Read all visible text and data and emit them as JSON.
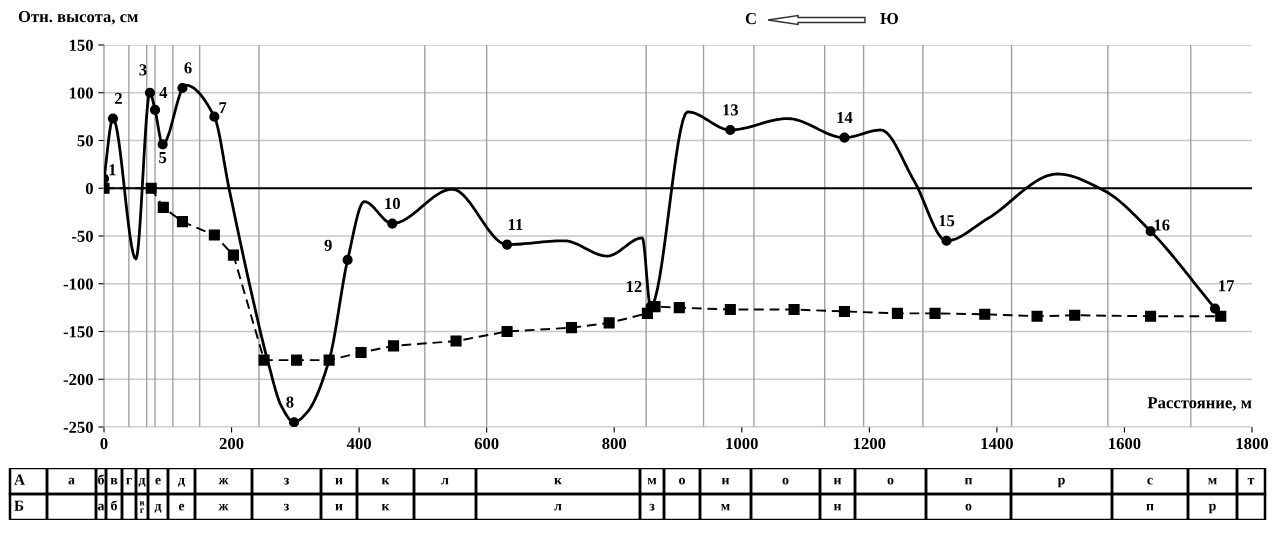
{
  "chart_data": [
    {
      "type": "line",
      "xlabel": "Расстояние, м",
      "ylabel": "Отн. высота, см",
      "xlim": [
        0,
        1800
      ],
      "ylim": [
        -250,
        150
      ],
      "xticks": [
        0,
        200,
        400,
        600,
        800,
        1000,
        1200,
        1400,
        1600,
        1800
      ],
      "yticks": [
        -250,
        -200,
        -150,
        -100,
        -50,
        0,
        50,
        100,
        150
      ],
      "grid": "y",
      "ref_lines": [
        {
          "axis": "y",
          "value": 0,
          "color": "#000000"
        },
        {
          "axis": "x",
          "value": 39,
          "color": "#a0a0a0"
        },
        {
          "axis": "x",
          "value": 67,
          "color": "#a0a0a0"
        },
        {
          "axis": "x",
          "value": 80,
          "color": "#a0a0a0"
        },
        {
          "axis": "x",
          "value": 108,
          "color": "#a0a0a0"
        },
        {
          "axis": "x",
          "value": 150,
          "color": "#a0a0a0"
        },
        {
          "axis": "x",
          "value": 243,
          "color": "#a0a0a0"
        },
        {
          "axis": "x",
          "value": 503,
          "color": "#a0a0a0"
        },
        {
          "axis": "x",
          "value": 600,
          "color": "#a0a0a0"
        },
        {
          "axis": "x",
          "value": 850,
          "color": "#a0a0a0"
        },
        {
          "axis": "x",
          "value": 940,
          "color": "#a0a0a0"
        },
        {
          "axis": "x",
          "value": 1019,
          "color": "#a0a0a0"
        },
        {
          "axis": "x",
          "value": 1130,
          "color": "#a0a0a0"
        },
        {
          "axis": "x",
          "value": 1191,
          "color": "#a0a0a0"
        },
        {
          "axis": "x",
          "value": 1284,
          "color": "#a0a0a0"
        },
        {
          "axis": "x",
          "value": 1423,
          "color": "#a0a0a0"
        },
        {
          "axis": "x",
          "value": 1574,
          "color": "#a0a0a0"
        },
        {
          "axis": "x",
          "value": 1704,
          "color": "#a0a0a0"
        }
      ],
      "series": [
        {
          "type": "line",
          "color": "#000000",
          "line_style": "solid",
          "marker": "none",
          "x": [
            0,
            14,
            50,
            72,
            80,
            92,
            128,
            173,
            196,
            228,
            258,
            278,
            298,
            318,
            353,
            382,
            408,
            452,
            546,
            632,
            721,
            789,
            844,
            857,
            915,
            982,
            1072,
            1161,
            1218,
            1270,
            1321,
            1385,
            1495,
            1567,
            1641,
            1742
          ],
          "values": [
            10,
            73,
            -74,
            100,
            82,
            46,
            108,
            75,
            0,
            -100,
            -184,
            -228,
            -245,
            -235,
            -180,
            -75,
            -14,
            -37,
            -1,
            -59,
            -55,
            -71,
            -52,
            -124,
            80,
            61,
            73,
            53,
            61,
            8,
            -55,
            -32,
            15,
            -2,
            -45,
            -126
          ]
        },
        {
          "type": "scatter",
          "color": "#000000",
          "marker": "circle",
          "x": [
            0,
            14,
            72,
            80,
            92,
            123,
            173,
            298,
            382,
            452,
            632,
            857,
            982,
            1161,
            1321,
            1641,
            1742
          ],
          "values": [
            10,
            73,
            100,
            82,
            46,
            105,
            75,
            -245,
            -75,
            -37,
            -59,
            -124,
            61,
            53,
            -55,
            -45,
            -126
          ]
        },
        {
          "type": "line",
          "color": "#000000",
          "line_style": "dashed",
          "marker": "square",
          "x": [
            0,
            74,
            93,
            123,
            173,
            203,
            251,
            302,
            353,
            403,
            454,
            552,
            632,
            733,
            792,
            852,
            864,
            902,
            982,
            1082,
            1161,
            1244,
            1303,
            1381,
            1463,
            1522,
            1641,
            1751
          ],
          "values": [
            0,
            0,
            -20,
            -35,
            -49,
            -70,
            -180,
            -180,
            -180,
            -172,
            -165,
            -160,
            -150,
            -146,
            -141,
            -131,
            -124,
            -125,
            -127,
            -127,
            -129,
            -131,
            -131,
            -132,
            -134,
            -133,
            -134,
            -134
          ]
        }
      ],
      "annotations": [
        {
          "text": "1",
          "x": 0,
          "y": 10
        },
        {
          "text": "2",
          "x": 14,
          "y": 73
        },
        {
          "text": "3",
          "x": 72,
          "y": 100
        },
        {
          "text": "4",
          "x": 80,
          "y": 82
        },
        {
          "text": "5",
          "x": 92,
          "y": 46
        },
        {
          "text": "6",
          "x": 123,
          "y": 105
        },
        {
          "text": "7",
          "x": 173,
          "y": 75
        },
        {
          "text": "8",
          "x": 298,
          "y": -245
        },
        {
          "text": "9",
          "x": 382,
          "y": -75
        },
        {
          "text": "10",
          "x": 452,
          "y": -37
        },
        {
          "text": "11",
          "x": 632,
          "y": -59
        },
        {
          "text": "12",
          "x": 857,
          "y": -124
        },
        {
          "text": "13",
          "x": 982,
          "y": 61
        },
        {
          "text": "14",
          "x": 1161,
          "y": 53
        },
        {
          "text": "15",
          "x": 1321,
          "y": -55
        },
        {
          "text": "16",
          "x": 1641,
          "y": -45
        },
        {
          "text": "17",
          "x": 1742,
          "y": -126
        },
        "С",
        "Ю"
      ]
    },
    {
      "type": "other",
      "y_categories": [
        "А",
        "Б"
      ],
      "cell_labels": [
        [
          "а",
          "б",
          "в",
          "г",
          "д",
          "е",
          "д",
          "ж",
          "з",
          "и",
          "к",
          "л",
          "к",
          "м",
          "о",
          "н",
          "о",
          "н",
          "о",
          "п",
          "р",
          "с",
          "м",
          "т"
        ],
        [
          null,
          "а",
          "б",
          null,
          "в\nг",
          "д",
          "е",
          "ж",
          "з",
          "и",
          "к",
          null,
          "л",
          "з",
          null,
          "м",
          null,
          "н",
          null,
          "о",
          null,
          "п",
          "р",
          null
        ]
      ]
    }
  ]
}
